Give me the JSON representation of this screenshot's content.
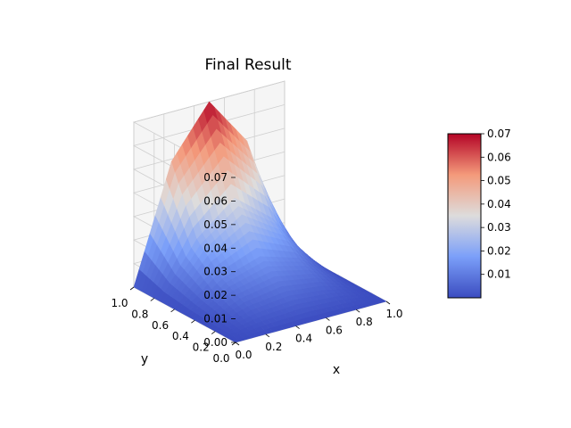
{
  "chart_data": {
    "type": "surface3d",
    "title": "Final Result",
    "xlabel": "x",
    "ylabel": "y",
    "zlabel": "",
    "xlim": [
      0.0,
      1.0
    ],
    "ylim": [
      0.0,
      1.0
    ],
    "zlim": [
      0.0,
      0.07
    ],
    "x_ticks": [
      "0.0",
      "0.2",
      "0.4",
      "0.6",
      "0.8",
      "1.0"
    ],
    "y_ticks": [
      "0.0",
      "0.2",
      "0.4",
      "0.6",
      "0.8",
      "1.0"
    ],
    "z_ticks": [
      "0.00",
      "0.01",
      "0.02",
      "0.03",
      "0.04",
      "0.05",
      "0.06",
      "0.07"
    ],
    "peak": {
      "x": 0.5,
      "y": 1.0,
      "z": 0.07
    },
    "surface": {
      "x": [
        0.0,
        0.25,
        0.5,
        0.75,
        1.0
      ],
      "y": [
        0.0,
        0.25,
        0.5,
        0.75,
        1.0
      ],
      "z": [
        [
          0.0,
          0.0,
          0.0,
          0.0,
          0.0
        ],
        [
          0.0,
          0.005,
          0.007,
          0.005,
          0.0
        ],
        [
          0.0,
          0.011,
          0.016,
          0.011,
          0.0
        ],
        [
          0.0,
          0.022,
          0.035,
          0.022,
          0.0
        ],
        [
          0.0,
          0.049,
          0.07,
          0.049,
          0.0
        ]
      ]
    },
    "colormap": "coolwarm",
    "grid": true,
    "colorbar": {
      "range": [
        0.0,
        0.07
      ],
      "ticks": [
        "0.01",
        "0.02",
        "0.03",
        "0.04",
        "0.05",
        "0.06",
        "0.07"
      ]
    }
  }
}
